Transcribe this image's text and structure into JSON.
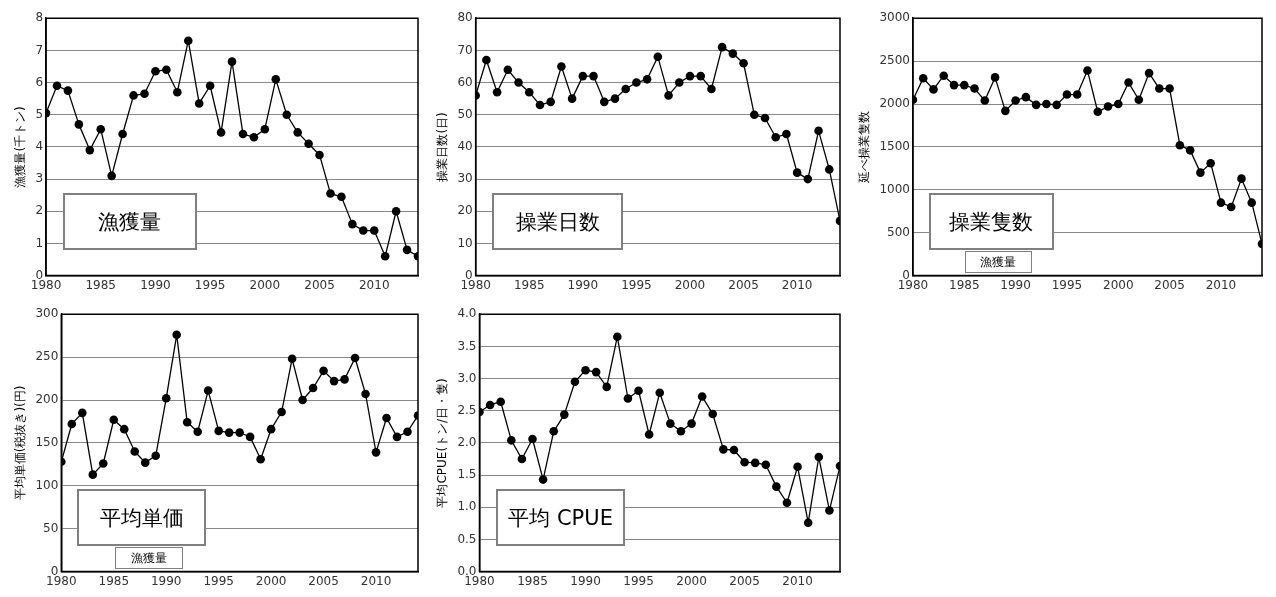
{
  "chart_data": [
    {
      "type": "line",
      "ylabel": "漁獲量(千トン)",
      "annotations": [
        "漁獲量"
      ],
      "xlim": [
        1980,
        2014
      ],
      "xticks": [
        1980,
        1985,
        1990,
        1995,
        2000,
        2005,
        2010
      ],
      "ylim": [
        0,
        8
      ],
      "yticks": [
        0,
        1,
        2,
        3,
        4,
        5,
        6,
        7,
        8
      ],
      "grid": "y",
      "marker": "circle",
      "line_style": "solid",
      "legend": false,
      "x": [
        1980,
        1981,
        1982,
        1983,
        1984,
        1985,
        1986,
        1987,
        1988,
        1989,
        1990,
        1991,
        1992,
        1993,
        1994,
        1995,
        1996,
        1997,
        1998,
        1999,
        2000,
        2001,
        2002,
        2003,
        2004,
        2005,
        2006,
        2007,
        2008,
        2009,
        2010,
        2011,
        2012,
        2013,
        2014
      ],
      "series": [
        {
          "color": "#000000",
          "values": [
            5.05,
            5.9,
            5.75,
            4.7,
            3.9,
            4.55,
            3.1,
            4.4,
            5.6,
            5.65,
            6.35,
            6.4,
            5.7,
            7.3,
            5.35,
            5.9,
            4.45,
            6.65,
            4.4,
            4.3,
            4.55,
            6.1,
            5.0,
            4.45,
            4.1,
            3.75,
            2.55,
            2.45,
            1.6,
            1.4,
            1.4,
            0.6,
            2.0,
            0.8,
            0.6
          ]
        }
      ]
    },
    {
      "type": "line",
      "ylabel": "操業日数(日)",
      "annotations": [
        "操業日数"
      ],
      "xlim": [
        1980,
        2014
      ],
      "xticks": [
        1980,
        1985,
        1990,
        1995,
        2000,
        2005,
        2010
      ],
      "ylim": [
        0,
        80
      ],
      "yticks": [
        0,
        10,
        20,
        30,
        40,
        50,
        60,
        70,
        80
      ],
      "grid": "y",
      "marker": "circle",
      "line_style": "solid",
      "legend": false,
      "x": [
        1980,
        1981,
        1982,
        1983,
        1984,
        1985,
        1986,
        1987,
        1988,
        1989,
        1990,
        1991,
        1992,
        1993,
        1994,
        1995,
        1996,
        1997,
        1998,
        1999,
        2000,
        2001,
        2002,
        2003,
        2004,
        2005,
        2006,
        2007,
        2008,
        2009,
        2010,
        2011,
        2012,
        2013,
        2014
      ],
      "series": [
        {
          "color": "#000000",
          "values": [
            56,
            67,
            57,
            64,
            60,
            57,
            53,
            54,
            65,
            55,
            62,
            62,
            54,
            55,
            58,
            60,
            61,
            68,
            56,
            60,
            62,
            62,
            58,
            71,
            69,
            66,
            50,
            49,
            43,
            44,
            32,
            30,
            45,
            33,
            17
          ]
        }
      ]
    },
    {
      "type": "line",
      "ylabel": "延べ操業隻数",
      "annotations": [
        "操業隻数",
        "漁獲量"
      ],
      "xlim": [
        1980,
        2014
      ],
      "xticks": [
        1980,
        1985,
        1990,
        1995,
        2000,
        2005,
        2010
      ],
      "ylim": [
        0,
        3000
      ],
      "yticks": [
        0,
        500,
        1000,
        1500,
        2000,
        2500,
        3000
      ],
      "grid": "y",
      "marker": "circle",
      "line_style": "solid",
      "legend": false,
      "x": [
        1980,
        1981,
        1982,
        1983,
        1984,
        1985,
        1986,
        1987,
        1988,
        1989,
        1990,
        1991,
        1992,
        1993,
        1994,
        1995,
        1996,
        1997,
        1998,
        1999,
        2000,
        2001,
        2002,
        2003,
        2004,
        2005,
        2006,
        2007,
        2008,
        2009,
        2010,
        2011,
        2012,
        2013,
        2014
      ],
      "series": [
        {
          "color": "#000000",
          "values": [
            2050,
            2300,
            2170,
            2330,
            2220,
            2220,
            2180,
            2040,
            2310,
            1920,
            2040,
            2080,
            1990,
            2000,
            1990,
            2110,
            2110,
            2390,
            1910,
            1970,
            2000,
            2250,
            2050,
            2360,
            2180,
            2180,
            1520,
            1460,
            1200,
            1310,
            850,
            800,
            1130,
            850,
            370
          ]
        }
      ]
    },
    {
      "type": "line",
      "ylabel": "平均単価(税抜き)(円)",
      "annotations": [
        "平均単価",
        "漁獲量"
      ],
      "xlim": [
        1980,
        2014
      ],
      "xticks": [
        1980,
        1985,
        1990,
        1995,
        2000,
        2005,
        2010
      ],
      "ylim": [
        0,
        300
      ],
      "yticks": [
        0,
        50,
        100,
        150,
        200,
        250,
        300
      ],
      "grid": "y",
      "marker": "circle",
      "line_style": "solid",
      "legend": false,
      "x": [
        1980,
        1981,
        1982,
        1983,
        1984,
        1985,
        1986,
        1987,
        1988,
        1989,
        1990,
        1991,
        1992,
        1993,
        1994,
        1995,
        1996,
        1997,
        1998,
        1999,
        2000,
        2001,
        2002,
        2003,
        2004,
        2005,
        2006,
        2007,
        2008,
        2009,
        2010,
        2011,
        2012,
        2013,
        2014
      ],
      "series": [
        {
          "color": "#000000",
          "values": [
            128,
            172,
            185,
            113,
            126,
            177,
            166,
            140,
            127,
            135,
            202,
            276,
            174,
            163,
            211,
            164,
            162,
            162,
            157,
            131,
            166,
            186,
            248,
            200,
            214,
            234,
            222,
            224,
            249,
            207,
            139,
            179,
            157,
            163,
            182
          ]
        }
      ]
    },
    {
      "type": "line",
      "ylabel": "平均CPUE(トン/日・隻)",
      "annotations": [
        "平均 CPUE"
      ],
      "xlim": [
        1980,
        2014
      ],
      "xticks": [
        1980,
        1985,
        1990,
        1995,
        2000,
        2005,
        2010
      ],
      "ylim": [
        0,
        4
      ],
      "yticks": [
        {
          "value": 0,
          "label": "0.0"
        },
        {
          "value": 0.5,
          "label": "0.5"
        },
        {
          "value": 1,
          "label": "1.0"
        },
        {
          "value": 1.5,
          "label": "1.5"
        },
        {
          "value": 2,
          "label": "2.0"
        },
        {
          "value": 2.5,
          "label": "2.5"
        },
        {
          "value": 3,
          "label": "3.0"
        },
        {
          "value": 3.5,
          "label": "3.5"
        },
        {
          "value": 4,
          "label": "4.0"
        }
      ],
      "grid": "y",
      "marker": "circle",
      "line_style": "solid",
      "legend": false,
      "x": [
        1980,
        1981,
        1982,
        1983,
        1984,
        1985,
        1986,
        1987,
        1988,
        1989,
        1990,
        1991,
        1992,
        1993,
        1994,
        1995,
        1996,
        1997,
        1998,
        1999,
        2000,
        2001,
        2002,
        2003,
        2004,
        2005,
        2006,
        2007,
        2008,
        2009,
        2010,
        2011,
        2012,
        2013,
        2014
      ],
      "series": [
        {
          "color": "#000000",
          "values": [
            2.48,
            2.59,
            2.64,
            2.04,
            1.75,
            2.06,
            1.43,
            2.18,
            2.44,
            2.95,
            3.13,
            3.1,
            2.87,
            3.65,
            2.69,
            2.81,
            2.13,
            2.78,
            2.3,
            2.18,
            2.3,
            2.72,
            2.45,
            1.9,
            1.89,
            1.7,
            1.69,
            1.66,
            1.32,
            1.07,
            1.63,
            0.76,
            1.78,
            0.95,
            1.64
          ]
        }
      ]
    }
  ]
}
